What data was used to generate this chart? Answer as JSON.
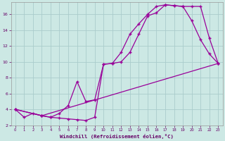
{
  "xlabel": "Windchill (Refroidissement éolien,°C)",
  "bg_color": "#cce8e4",
  "line_color": "#990099",
  "grid_color": "#aacccc",
  "line1_x": [
    0,
    1,
    2,
    3,
    4,
    5,
    6,
    7,
    8,
    9,
    10,
    11,
    12,
    13,
    14,
    15,
    16,
    17,
    18,
    19,
    20,
    21,
    22,
    23
  ],
  "line1_y": [
    4.0,
    3.0,
    3.5,
    3.2,
    3.0,
    2.9,
    2.8,
    2.7,
    2.6,
    3.0,
    9.7,
    9.8,
    11.2,
    13.5,
    14.8,
    16.0,
    17.0,
    17.2,
    17.1,
    17.0,
    17.0,
    17.0,
    13.0,
    9.8
  ],
  "line2_x": [
    0,
    3,
    4,
    5,
    6,
    7,
    8,
    9,
    10,
    11,
    12,
    13,
    14,
    15,
    16,
    17,
    18,
    19,
    20,
    21,
    22,
    23
  ],
  "line2_y": [
    4.0,
    3.2,
    3.0,
    3.5,
    4.5,
    7.5,
    5.0,
    5.2,
    9.7,
    9.8,
    10.0,
    11.2,
    13.5,
    15.8,
    16.2,
    17.2,
    17.1,
    17.0,
    15.2,
    12.8,
    11.0,
    9.8
  ],
  "line3_x": [
    0,
    3,
    23
  ],
  "line3_y": [
    4.0,
    3.2,
    9.8
  ],
  "xlim": [
    -0.5,
    23.5
  ],
  "ylim": [
    2,
    17.5
  ],
  "xticks": [
    0,
    1,
    2,
    3,
    4,
    5,
    6,
    7,
    8,
    9,
    10,
    11,
    12,
    13,
    14,
    15,
    16,
    17,
    18,
    19,
    20,
    21,
    22,
    23
  ],
  "yticks": [
    2,
    4,
    6,
    8,
    10,
    12,
    14,
    16
  ]
}
